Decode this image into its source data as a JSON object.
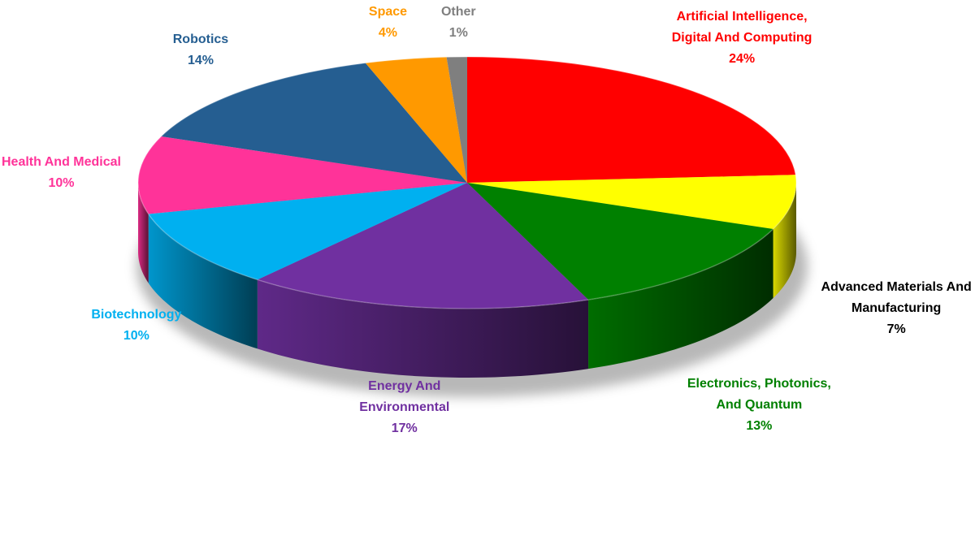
{
  "chart_data": {
    "type": "pie",
    "style": "3d-exploded-depth",
    "slices": [
      {
        "name": "Artificial Intelligence, Digital And Computing",
        "lines": [
          "Artificial Intelligence,",
          "Digital And Computing"
        ],
        "pct_label": "24%",
        "value": 24,
        "color": "#ff0000"
      },
      {
        "name": "Advanced Materials And Manufacturing",
        "lines": [
          "Advanced Materials And",
          "Manufacturing"
        ],
        "pct_label": "7%",
        "value": 7,
        "color": "#ffff00",
        "label_color": "#000000"
      },
      {
        "name": "Electronics, Photonics, And Quantum",
        "lines": [
          "Electronics, Photonics,",
          "And Quantum"
        ],
        "pct_label": "13%",
        "value": 13,
        "color": "#008000"
      },
      {
        "name": "Energy And Environmental",
        "lines": [
          "Energy And",
          "Environmental"
        ],
        "pct_label": "17%",
        "value": 17,
        "color": "#7030a0"
      },
      {
        "name": "Biotechnology",
        "lines": [
          "Biotechnology"
        ],
        "pct_label": "10%",
        "value": 10,
        "color": "#00b0f0"
      },
      {
        "name": "Health And Medical",
        "lines": [
          "Health And Medical"
        ],
        "pct_label": "10%",
        "value": 10,
        "color": "#ff3399"
      },
      {
        "name": "Robotics",
        "lines": [
          "Robotics"
        ],
        "pct_label": "14%",
        "value": 14,
        "color": "#255e91"
      },
      {
        "name": "Space",
        "lines": [
          "Space"
        ],
        "pct_label": "4%",
        "value": 4,
        "color": "#ff9900"
      },
      {
        "name": "Other",
        "lines": [
          "Other"
        ],
        "pct_label": "1%",
        "value": 1,
        "color": "#7f7f7f"
      }
    ],
    "legend": "none",
    "data_labels": "outside"
  }
}
